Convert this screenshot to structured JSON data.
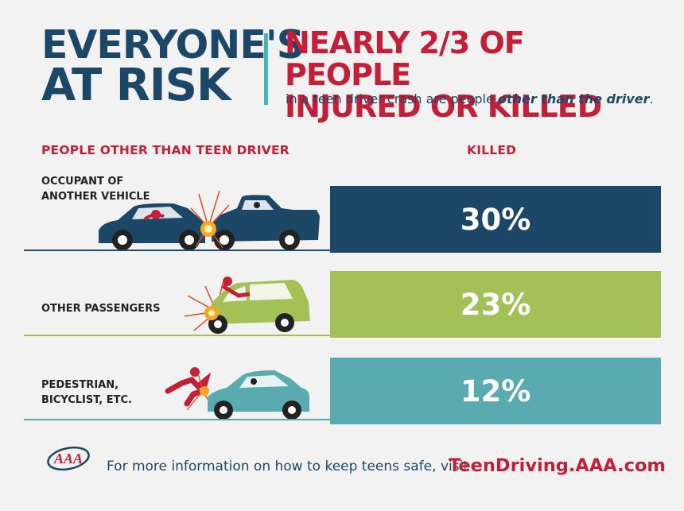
{
  "header": {
    "left_line1": "EVERYONE'S",
    "left_line2": "AT RISK",
    "right_line1": "NEARLY 2/3 OF PEOPLE",
    "right_line2": "INJURED OR KILLED",
    "subline_prefix": "in a teen driver crash are people ",
    "subline_emphasis": "other than the driver",
    "subline_suffix": "."
  },
  "columns": {
    "left_header": "PEOPLE OTHER THAN TEEN DRIVER",
    "right_header": "KILLED"
  },
  "rows": [
    {
      "line1": "OCCUPANT OF",
      "line2": "ANOTHER VEHICLE",
      "value": "30%",
      "color": "#1d4767"
    },
    {
      "line1": "OTHER PASSENGERS",
      "line2": "",
      "value": "23%",
      "color": "#a3c157"
    },
    {
      "line1": "PEDESTRIAN,",
      "line2": "BICYCLIST, ETC.",
      "value": "12%",
      "color": "#5aabb0"
    }
  ],
  "footer": {
    "text": "For more information on how to keep teens safe, visit",
    "link": "TeenDriving.AAA.com",
    "logo_text": "AAA"
  },
  "icons": [
    "car-crash-icon",
    "passenger-crash-icon",
    "pedestrian-crash-icon",
    "aaa-logo-icon"
  ]
}
